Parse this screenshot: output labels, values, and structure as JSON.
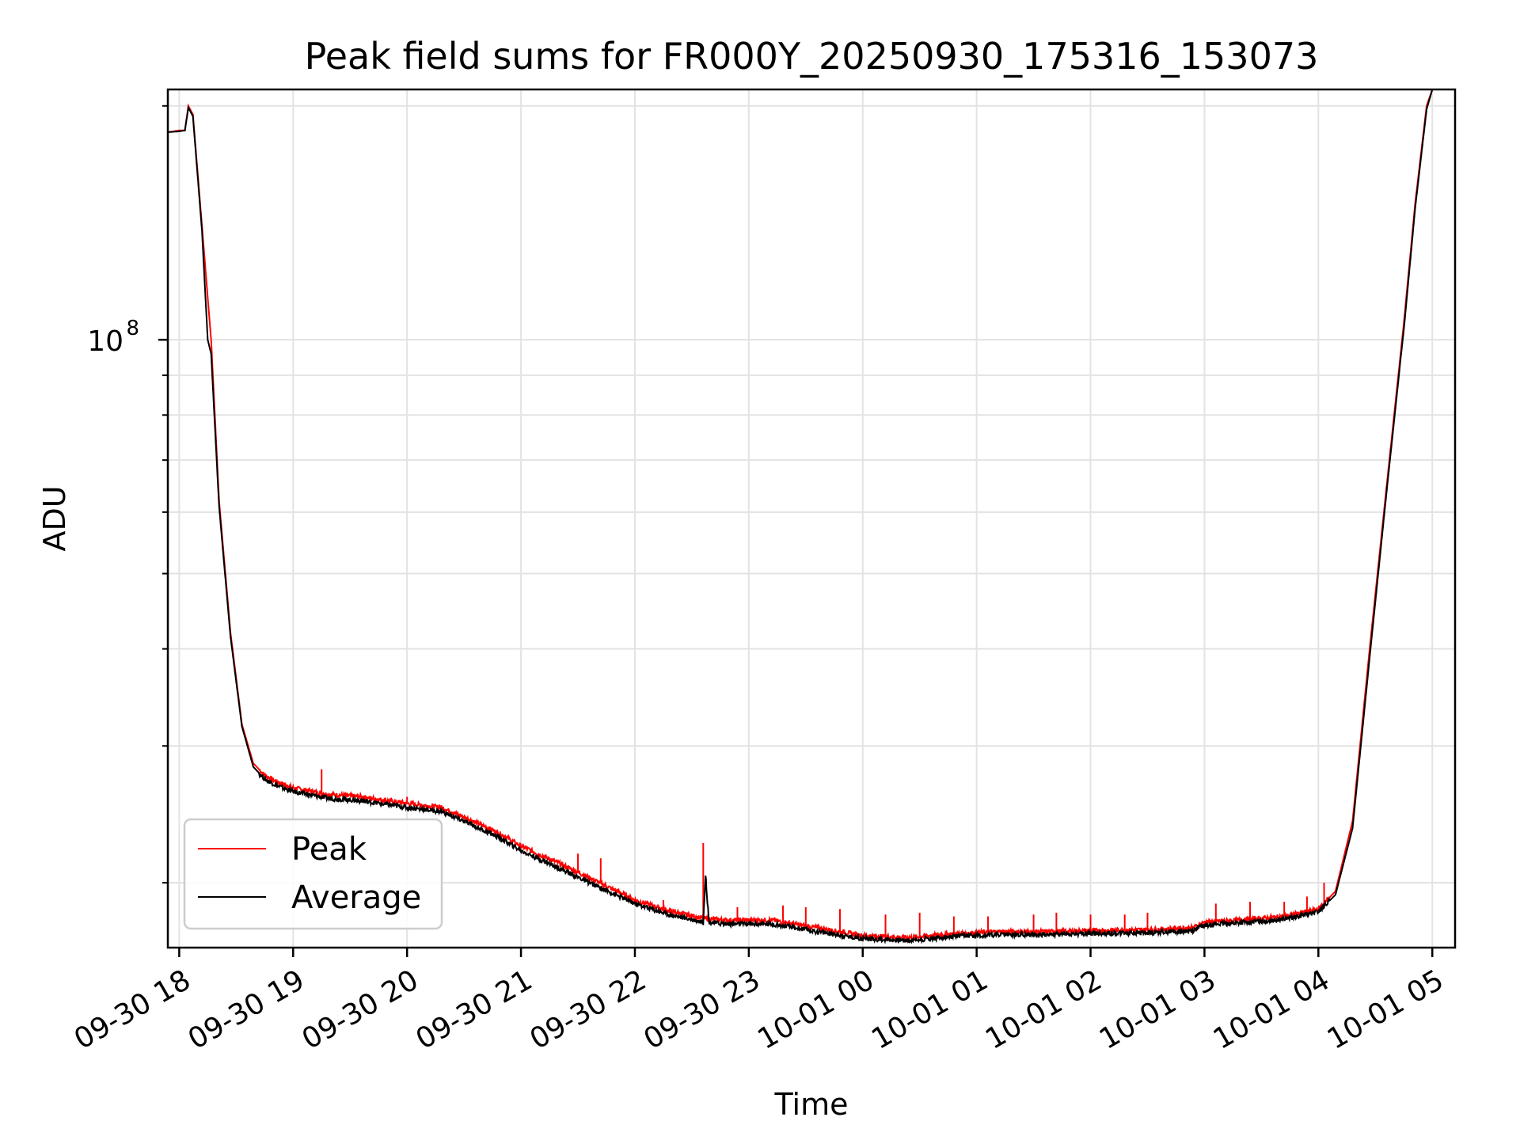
{
  "chart_data": {
    "type": "line",
    "title": "Peak field sums for FR000Y_20250930_175316_153073",
    "xlabel": "Time",
    "ylabel": "ADU",
    "yscale": "log",
    "ylim": [
      16500000,
      210000000
    ],
    "xlim_hours": [
      -0.1,
      11.2
    ],
    "x_ticks": [
      {
        "hour": 0,
        "label": "09-30 18"
      },
      {
        "hour": 1,
        "label": "09-30 19"
      },
      {
        "hour": 2,
        "label": "09-30 20"
      },
      {
        "hour": 3,
        "label": "09-30 21"
      },
      {
        "hour": 4,
        "label": "09-30 22"
      },
      {
        "hour": 5,
        "label": "09-30 23"
      },
      {
        "hour": 6,
        "label": "10-01 00"
      },
      {
        "hour": 7,
        "label": "10-01 01"
      },
      {
        "hour": 8,
        "label": "10-01 02"
      },
      {
        "hour": 9,
        "label": "10-01 03"
      },
      {
        "hour": 10,
        "label": "10-01 04"
      },
      {
        "hour": 11,
        "label": "10-01 05"
      }
    ],
    "y_major_tick": {
      "value": 100000000,
      "label_base": "10",
      "label_exp": "8"
    },
    "y_minor_ticks": [
      20000000,
      30000000,
      40000000,
      50000000,
      60000000,
      70000000,
      80000000,
      90000000,
      200000000
    ],
    "grid": true,
    "legend_position": "lower-left",
    "series": [
      {
        "name": "Peak",
        "color": "#ff0000",
        "x_hours": [
          -0.1,
          0.0,
          0.05,
          0.08,
          0.12,
          0.2,
          0.28,
          0.35,
          0.45,
          0.55,
          0.65,
          0.75,
          0.85,
          1.0,
          1.3,
          1.6,
          2.0,
          2.3,
          2.5,
          2.8,
          3.0,
          3.3,
          3.6,
          4.0,
          4.3,
          4.6,
          4.8,
          5.2,
          5.6,
          6.0,
          6.4,
          6.8,
          7.2,
          7.6,
          8.0,
          8.5,
          8.9,
          9.0,
          9.3,
          9.7,
          10.0,
          10.15,
          10.3,
          10.45,
          10.6,
          10.75,
          10.85,
          10.95,
          11.0
        ],
        "values": [
          185000000,
          186000000,
          186000000,
          200000000,
          195000000,
          140000000,
          100000000,
          62000000,
          42000000,
          32000000,
          28500000,
          27500000,
          27000000,
          26500000,
          26000000,
          25800000,
          25300000,
          25000000,
          24300000,
          23200000,
          22300000,
          21300000,
          20300000,
          19000000,
          18400000,
          18000000,
          17900000,
          17900000,
          17500000,
          17100000,
          17000000,
          17200000,
          17300000,
          17300000,
          17350000,
          17400000,
          17500000,
          17800000,
          17900000,
          18100000,
          18500000,
          19500000,
          24000000,
          40000000,
          65000000,
          105000000,
          150000000,
          200000000,
          210000000
        ],
        "spikes": [
          {
            "hour": 1.25,
            "value": 28000000
          },
          {
            "hour": 2.0,
            "value": 25800000
          },
          {
            "hour": 3.5,
            "value": 21800000
          },
          {
            "hour": 3.7,
            "value": 21500000
          },
          {
            "hour": 4.25,
            "value": 19000000
          },
          {
            "hour": 4.6,
            "value": 22500000
          },
          {
            "hour": 4.9,
            "value": 18600000
          },
          {
            "hour": 5.3,
            "value": 18700000
          },
          {
            "hour": 5.5,
            "value": 18600000
          },
          {
            "hour": 5.8,
            "value": 18500000
          },
          {
            "hour": 6.2,
            "value": 18200000
          },
          {
            "hour": 6.5,
            "value": 18300000
          },
          {
            "hour": 6.8,
            "value": 18100000
          },
          {
            "hour": 7.1,
            "value": 18100000
          },
          {
            "hour": 7.5,
            "value": 18200000
          },
          {
            "hour": 7.7,
            "value": 18300000
          },
          {
            "hour": 8.0,
            "value": 18200000
          },
          {
            "hour": 8.3,
            "value": 18200000
          },
          {
            "hour": 8.5,
            "value": 18300000
          },
          {
            "hour": 9.1,
            "value": 18800000
          },
          {
            "hour": 9.4,
            "value": 18900000
          },
          {
            "hour": 9.7,
            "value": 18900000
          },
          {
            "hour": 9.9,
            "value": 19200000
          },
          {
            "hour": 10.05,
            "value": 20000000
          }
        ]
      },
      {
        "name": "Average",
        "color": "#000000",
        "x_hours": [
          -0.1,
          0.0,
          0.05,
          0.08,
          0.12,
          0.2,
          0.25,
          0.28,
          0.35,
          0.45,
          0.55,
          0.65,
          0.75,
          0.85,
          1.0,
          1.3,
          1.6,
          2.0,
          2.3,
          2.5,
          2.8,
          3.0,
          3.3,
          3.6,
          4.0,
          4.3,
          4.6,
          4.62,
          4.65,
          4.8,
          5.2,
          5.6,
          6.0,
          6.4,
          6.8,
          7.2,
          7.6,
          8.0,
          8.5,
          8.9,
          9.0,
          9.3,
          9.7,
          10.0,
          10.15,
          10.3,
          10.45,
          10.6,
          10.7,
          10.72,
          10.75,
          10.85,
          10.95,
          11.0
        ],
        "values": [
          185000000,
          185500000,
          186000000,
          199000000,
          194000000,
          138000000,
          100000000,
          96000000,
          61000000,
          41500000,
          31800000,
          28200000,
          27200000,
          26700000,
          26200000,
          25700000,
          25500000,
          25000000,
          24700000,
          24000000,
          22900000,
          22000000,
          21000000,
          20000000,
          18800000,
          18200000,
          17800000,
          20500000,
          17800000,
          17700000,
          17700000,
          17300000,
          16950000,
          16850000,
          17050000,
          17150000,
          17150000,
          17200000,
          17250000,
          17350000,
          17650000,
          17750000,
          17950000,
          18350000,
          19300000,
          23500000,
          39000000,
          64000000,
          88000000,
          94000000,
          103000000,
          148000000,
          198000000,
          210000000
        ]
      }
    ]
  }
}
